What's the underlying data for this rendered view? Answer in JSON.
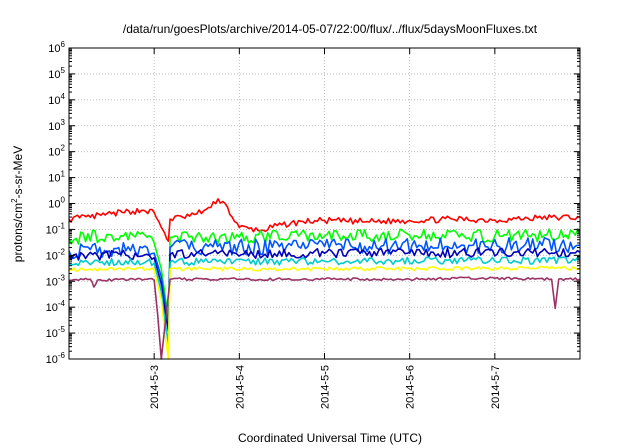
{
  "chart_data": {
    "type": "line",
    "title": "/data/run/goesPlots/archive/2014-05-07/22:00/flux/../flux/5daysMoonFluxes.txt",
    "xlabel": "Coordinated Universal Time (UTC)",
    "ylabel": "protons/cm²-s-sr-MeV",
    "ylabel_parts": {
      "before": "protons/cm",
      "sup": "2",
      "after": "-s-sr-MeV"
    },
    "y_scale": "log",
    "ylim": [
      1e-06,
      1000000.0
    ],
    "x_unit": "days",
    "xlim": [
      "2014-05-02T00:00",
      "2014-05-08T00:00"
    ],
    "y_ticks": [
      {
        "exp": -6,
        "label_base": "10",
        "label_exp": "-6"
      },
      {
        "exp": -5,
        "label_base": "10",
        "label_exp": "-5"
      },
      {
        "exp": -4,
        "label_base": "10",
        "label_exp": "-4"
      },
      {
        "exp": -3,
        "label_base": "10",
        "label_exp": "-3"
      },
      {
        "exp": -2,
        "label_base": "10",
        "label_exp": "-2"
      },
      {
        "exp": -1,
        "label_base": "10",
        "label_exp": "-1"
      },
      {
        "exp": 0,
        "label_base": "10",
        "label_exp": "0"
      },
      {
        "exp": 1,
        "label_base": "10",
        "label_exp": "1"
      },
      {
        "exp": 2,
        "label_base": "10",
        "label_exp": "2"
      },
      {
        "exp": 3,
        "label_base": "10",
        "label_exp": "3"
      },
      {
        "exp": 4,
        "label_base": "10",
        "label_exp": "4"
      },
      {
        "exp": 5,
        "label_base": "10",
        "label_exp": "5"
      },
      {
        "exp": 6,
        "label_base": "10",
        "label_exp": "6"
      }
    ],
    "x_ticks": [
      {
        "t": "2014-05-03T00:00",
        "label": "2014-5-3"
      },
      {
        "t": "2014-05-04T00:00",
        "label": "2014-5-4"
      },
      {
        "t": "2014-05-05T00:00",
        "label": "2014-5-5"
      },
      {
        "t": "2014-05-06T00:00",
        "label": "2014-5-6"
      },
      {
        "t": "2014-05-07T00:00",
        "label": "2014-5-7"
      }
    ],
    "grid": true,
    "legend": "none",
    "series": [
      {
        "color": "#ff0000",
        "points": [
          [
            "2014-05-02T00:00",
            0.25
          ],
          [
            "2014-05-02T03:00",
            0.28
          ],
          [
            "2014-05-02T06:00",
            0.3
          ],
          [
            "2014-05-02T09:00",
            0.35
          ],
          [
            "2014-05-02T12:00",
            0.4
          ],
          [
            "2014-05-02T15:00",
            0.45
          ],
          [
            "2014-05-02T18:00",
            0.5
          ],
          [
            "2014-05-02T21:00",
            0.55
          ],
          [
            "2014-05-03T00:00",
            0.45
          ],
          [
            "2014-05-03T02:00",
            0.12
          ],
          [
            "2014-05-03T03:00",
            0.07
          ],
          [
            "2014-05-03T04:00",
            0.035
          ],
          [
            "2014-05-03T04:30",
            0.25
          ],
          [
            "2014-05-03T08:00",
            0.3
          ],
          [
            "2014-05-03T12:00",
            0.4
          ],
          [
            "2014-05-03T16:00",
            0.7
          ],
          [
            "2014-05-03T18:00",
            1.5
          ],
          [
            "2014-05-03T20:00",
            1.0
          ],
          [
            "2014-05-03T22:00",
            0.3
          ],
          [
            "2014-05-04T00:00",
            0.12
          ],
          [
            "2014-05-04T06:00",
            0.09
          ],
          [
            "2014-05-04T12:00",
            0.15
          ],
          [
            "2014-05-04T18:00",
            0.2
          ],
          [
            "2014-05-05T00:00",
            0.22
          ],
          [
            "2014-05-05T12:00",
            0.2
          ],
          [
            "2014-05-06T00:00",
            0.22
          ],
          [
            "2014-05-06T12:00",
            0.25
          ],
          [
            "2014-05-07T00:00",
            0.23
          ],
          [
            "2014-05-07T12:00",
            0.28
          ],
          [
            "2014-05-08T00:00",
            0.3
          ]
        ],
        "jitter": 0.12
      },
      {
        "color": "#00ff00",
        "points": [
          [
            "2014-05-02T00:00",
            0.045
          ],
          [
            "2014-05-02T12:00",
            0.06
          ],
          [
            "2014-05-02T22:00",
            0.05
          ],
          [
            "2014-05-03T00:00",
            0.03
          ],
          [
            "2014-05-03T02:00",
            0.003
          ],
          [
            "2014-05-03T03:00",
            0.00035
          ],
          [
            "2014-05-03T04:00",
            3e-05
          ],
          [
            "2014-05-03T04:30",
            0.05
          ],
          [
            "2014-05-04T00:00",
            0.05
          ],
          [
            "2014-05-05T00:00",
            0.055
          ],
          [
            "2014-05-06T00:00",
            0.06
          ],
          [
            "2014-05-07T00:00",
            0.055
          ],
          [
            "2014-05-08T00:00",
            0.06
          ]
        ],
        "jitter": 0.25
      },
      {
        "color": "#0055ff",
        "points": [
          [
            "2014-05-02T00:00",
            0.015
          ],
          [
            "2014-05-02T22:00",
            0.02
          ],
          [
            "2014-05-03T00:00",
            0.012
          ],
          [
            "2014-05-03T02:00",
            0.0015
          ],
          [
            "2014-05-03T03:00",
            0.00018
          ],
          [
            "2014-05-03T04:00",
            2e-05
          ],
          [
            "2014-05-03T04:30",
            0.02
          ],
          [
            "2014-05-05T00:00",
            0.022
          ],
          [
            "2014-05-08T00:00",
            0.025
          ]
        ],
        "jitter": 0.3
      },
      {
        "color": "#0000bb",
        "points": [
          [
            "2014-05-02T00:00",
            0.009
          ],
          [
            "2014-05-02T22:00",
            0.011
          ],
          [
            "2014-05-03T00:00",
            0.008
          ],
          [
            "2014-05-03T02:00",
            0.0008
          ],
          [
            "2014-05-03T03:00",
            8e-05
          ],
          [
            "2014-05-03T04:00",
            1.2e-05
          ],
          [
            "2014-05-03T04:30",
            0.011
          ],
          [
            "2014-05-05T00:00",
            0.012
          ],
          [
            "2014-05-08T00:00",
            0.013
          ]
        ],
        "jitter": 0.18
      },
      {
        "color": "#00cccc",
        "points": [
          [
            "2014-05-02T00:00",
            0.005
          ],
          [
            "2014-05-02T22:00",
            0.006
          ],
          [
            "2014-05-03T00:00",
            0.005
          ],
          [
            "2014-05-03T02:00",
            0.0004
          ],
          [
            "2014-05-03T03:00",
            3e-05
          ],
          [
            "2014-05-03T04:00",
            4e-06
          ],
          [
            "2014-05-03T04:30",
            0.0055
          ],
          [
            "2014-05-05T00:00",
            0.006
          ],
          [
            "2014-05-08T00:00",
            0.0065
          ]
        ],
        "jitter": 0.14
      },
      {
        "color": "#ffff00",
        "points": [
          [
            "2014-05-02T00:00",
            0.0028
          ],
          [
            "2014-05-02T22:00",
            0.003
          ],
          [
            "2014-05-03T00:00",
            0.0028
          ],
          [
            "2014-05-03T02:00",
            0.0002
          ],
          [
            "2014-05-03T03:00",
            1e-05
          ],
          [
            "2014-05-03T04:00",
            1e-06
          ],
          [
            "2014-05-03T04:30",
            0.003
          ],
          [
            "2014-05-05T00:00",
            0.003
          ],
          [
            "2014-05-08T00:00",
            0.0032
          ]
        ],
        "jitter": 0.07
      },
      {
        "color": "#993366",
        "points": [
          [
            "2014-05-02T00:00",
            0.0011
          ],
          [
            "2014-05-02T06:00",
            0.0012
          ],
          [
            "2014-05-02T07:00",
            0.0006
          ],
          [
            "2014-05-02T08:00",
            0.0011
          ],
          [
            "2014-05-02T22:00",
            0.0012
          ],
          [
            "2014-05-03T00:00",
            0.0011
          ],
          [
            "2014-05-03T01:00",
            5e-05
          ],
          [
            "2014-05-03T02:00",
            9e-07
          ],
          [
            "2014-05-03T04:30",
            0.0012
          ],
          [
            "2014-05-04T00:00",
            0.0012
          ],
          [
            "2014-05-05T00:00",
            0.0012
          ],
          [
            "2014-05-06T00:00",
            0.0012
          ],
          [
            "2014-05-06T20:00",
            0.0013
          ],
          [
            "2014-05-07T16:00",
            0.0012
          ],
          [
            "2014-05-07T17:00",
            9e-05
          ],
          [
            "2014-05-07T18:00",
            0.0012
          ],
          [
            "2014-05-08T00:00",
            0.0012
          ]
        ],
        "jitter": 0.05
      }
    ]
  }
}
